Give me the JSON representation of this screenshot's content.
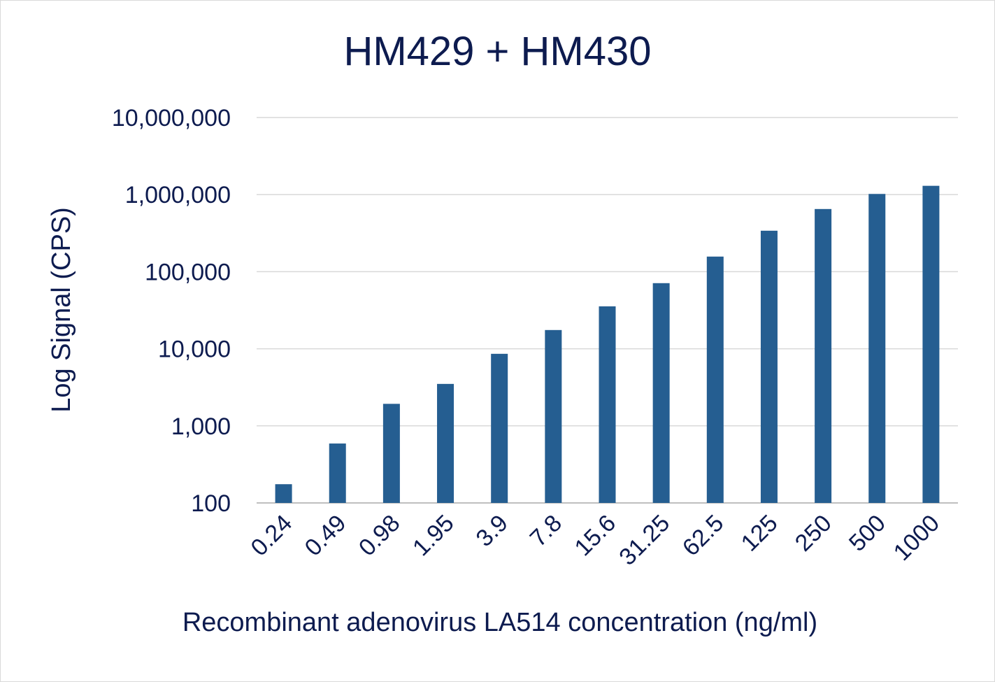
{
  "chart_data": {
    "type": "bar",
    "title": "HM429 + HM430",
    "xlabel": "Recombinant adenovirus LA514 concentration (ng/ml)",
    "ylabel": "Log Signal (CPS)",
    "yscale": "log",
    "ylim": [
      100,
      10000000
    ],
    "y_ticks": [
      100,
      1000,
      10000,
      100000,
      1000000,
      10000000
    ],
    "y_tick_labels": [
      "100",
      "1,000",
      "10,000",
      "100,000",
      "1,000,000",
      "10,000,000"
    ],
    "categories": [
      "0.24",
      "0.49",
      "0.98",
      "1.95",
      "3.9",
      "7.8",
      "15.6",
      "31.25",
      "62.5",
      "125",
      "250",
      "500",
      "1000"
    ],
    "values": [
      175,
      590,
      1930,
      3500,
      8600,
      17500,
      35500,
      71000,
      157000,
      340000,
      650000,
      1020000,
      1300000
    ],
    "bar_color": "#255e91",
    "grid": true,
    "legend": "none"
  }
}
